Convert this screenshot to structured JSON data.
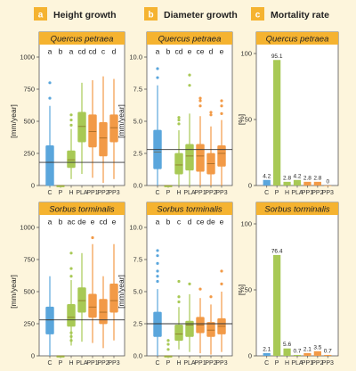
{
  "panels": [
    {
      "letter": "a",
      "title": "Height growth"
    },
    {
      "letter": "b",
      "title": "Diameter growth"
    },
    {
      "letter": "c",
      "title": "Mortality rate"
    }
  ],
  "species": [
    "Quercus petraea",
    "Sorbus torminalis"
  ],
  "ylabels": {
    "height": "[mm/year]",
    "diameter": "[mm/year]",
    "mortality": "[%]"
  },
  "colors": {
    "blue": "#5aa6dc",
    "green": "#a8c955",
    "orange": "#f29a47",
    "header": "#f5b330",
    "bg": "#fdf5dc",
    "plot_bg": "#ffffff"
  },
  "chart_data": [
    {
      "type": "box",
      "panel": "a",
      "species": "Quercus petraea",
      "categories": [
        "C",
        "P",
        "H",
        "PLA",
        "PP1",
        "PP2",
        "PP3"
      ],
      "letters": [
        "a",
        "b",
        "a",
        "cd",
        "cd",
        "c",
        "d"
      ],
      "ylim": [
        0,
        1000
      ],
      "yticks": [
        0,
        250,
        500,
        750,
        1000
      ],
      "reference_line": 180,
      "boxes": [
        {
          "min": 0,
          "q1": 0,
          "median": 180,
          "q3": 310,
          "max": 620,
          "outliers": [
            680,
            800
          ]
        },
        {
          "min": 0,
          "q1": 0,
          "median": 0,
          "q3": 0,
          "max": 0,
          "outliers": []
        },
        {
          "min": 50,
          "q1": 140,
          "median": 200,
          "q3": 270,
          "max": 440,
          "outliers": [
            470,
            510,
            550
          ]
        },
        {
          "min": 90,
          "q1": 340,
          "median": 460,
          "q3": 570,
          "max": 800,
          "outliers": []
        },
        {
          "min": 60,
          "q1": 300,
          "median": 420,
          "q3": 550,
          "max": 820,
          "outliers": []
        },
        {
          "min": 20,
          "q1": 230,
          "median": 370,
          "q3": 490,
          "max": 850,
          "outliers": []
        },
        {
          "min": 50,
          "q1": 340,
          "median": 450,
          "q3": 550,
          "max": 830,
          "outliers": []
        }
      ]
    },
    {
      "type": "box",
      "panel": "b",
      "species": "Quercus petraea",
      "categories": [
        "C",
        "P",
        "H",
        "PLA",
        "PP1",
        "PP2",
        "PP3"
      ],
      "letters": [
        "a",
        "b",
        "cd",
        "e",
        "ce",
        "d",
        "e"
      ],
      "ylim": [
        0,
        10
      ],
      "yticks": [
        0,
        2.5,
        5,
        7.5,
        10
      ],
      "reference_line": 2.8,
      "boxes": [
        {
          "min": 0,
          "q1": 1.3,
          "median": 2.6,
          "q3": 4.3,
          "max": 7.8,
          "outliers": [
            8.4,
            9.1
          ]
        },
        {
          "min": 0,
          "q1": 0,
          "median": 0,
          "q3": 0,
          "max": 0,
          "outliers": []
        },
        {
          "min": 0,
          "q1": 0.9,
          "median": 1.6,
          "q3": 2.5,
          "max": 4.3,
          "outliers": [
            4.8,
            5.1,
            5.3
          ]
        },
        {
          "min": 0,
          "q1": 1.2,
          "median": 2.3,
          "q3": 3.2,
          "max": 5.6,
          "outliers": [
            7.8,
            8.6
          ]
        },
        {
          "min": 0,
          "q1": 1.1,
          "median": 2.3,
          "q3": 3.2,
          "max": 5.4,
          "outliers": [
            6.2,
            6.6,
            6.8
          ]
        },
        {
          "min": 0,
          "q1": 0.9,
          "median": 1.7,
          "q3": 2.5,
          "max": 4.6,
          "outliers": [
            5.5,
            5.7
          ]
        },
        {
          "min": 0,
          "q1": 1.5,
          "median": 2.5,
          "q3": 3.1,
          "max": 5.1,
          "outliers": [
            5.6,
            6.2,
            6.6
          ]
        }
      ]
    },
    {
      "type": "bar",
      "panel": "c",
      "species": "Quercus petraea",
      "categories": [
        "C",
        "P",
        "H",
        "PLA",
        "PP1",
        "PP2",
        "PP3"
      ],
      "values": [
        4.2,
        95.1,
        2.8,
        4.2,
        2.8,
        2.8,
        0
      ],
      "labels": [
        "4.2",
        "95.1",
        "2.8",
        "4.2",
        "2.8",
        "2.8",
        "0"
      ],
      "ylim": [
        0,
        100
      ],
      "yticks": [
        0,
        50,
        100
      ]
    },
    {
      "type": "box",
      "panel": "a",
      "species": "Sorbus torminalis",
      "categories": [
        "C",
        "P",
        "H",
        "PLA",
        "PP1",
        "PP2",
        "PP3"
      ],
      "letters": [
        "a",
        "b",
        "ac",
        "de",
        "e",
        "cd",
        "e"
      ],
      "ylim": [
        0,
        1000
      ],
      "yticks": [
        0,
        250,
        500,
        750,
        1000
      ],
      "reference_line": 280,
      "boxes": [
        {
          "min": 0,
          "q1": 170,
          "median": 280,
          "q3": 380,
          "max": 620,
          "outliers": []
        },
        {
          "min": 0,
          "q1": 0,
          "median": 0,
          "q3": 0,
          "max": 0,
          "outliers": []
        },
        {
          "min": 80,
          "q1": 230,
          "median": 300,
          "q3": 400,
          "max": 590,
          "outliers": [
            120,
            150,
            180,
            620,
            680,
            800
          ]
        },
        {
          "min": 110,
          "q1": 340,
          "median": 430,
          "q3": 530,
          "max": 800,
          "outliers": []
        },
        {
          "min": 100,
          "q1": 300,
          "median": 380,
          "q3": 480,
          "max": 870,
          "outliers": [
            920
          ]
        },
        {
          "min": 60,
          "q1": 250,
          "median": 340,
          "q3": 440,
          "max": 620,
          "outliers": []
        },
        {
          "min": 120,
          "q1": 340,
          "median": 430,
          "q3": 560,
          "max": 870,
          "outliers": []
        }
      ]
    },
    {
      "type": "box",
      "panel": "b",
      "species": "Sorbus torminalis",
      "categories": [
        "C",
        "P",
        "H",
        "PLA",
        "PP1",
        "PP2",
        "PP3"
      ],
      "letters": [
        "a",
        "b",
        "c",
        "d",
        "ce",
        "de",
        "e"
      ],
      "ylim": [
        0,
        10
      ],
      "yticks": [
        0,
        2.5,
        5,
        7.5,
        10
      ],
      "reference_line": 2.5,
      "boxes": [
        {
          "min": 0,
          "q1": 1.5,
          "median": 2.5,
          "q3": 3.4,
          "max": 5.2,
          "outliers": [
            5.8,
            6.2,
            6.6,
            7.2,
            7.8,
            8.2
          ]
        },
        {
          "min": 0,
          "q1": 0,
          "median": 0,
          "q3": 0,
          "max": 0,
          "outliers": [
            0.5,
            0.9,
            1.2
          ]
        },
        {
          "min": 0.5,
          "q1": 1.2,
          "median": 1.7,
          "q3": 2.4,
          "max": 3.8,
          "outliers": [
            4.2,
            4.6,
            5.8
          ]
        },
        {
          "min": 0.3,
          "q1": 1.5,
          "median": 2.4,
          "q3": 2.7,
          "max": 4.8,
          "outliers": [
            5.6
          ]
        },
        {
          "min": 0.2,
          "q1": 1.8,
          "median": 2.4,
          "q3": 3,
          "max": 4.5,
          "outliers": [
            5.2
          ]
        },
        {
          "min": 0.1,
          "q1": 1.5,
          "median": 2,
          "q3": 2.6,
          "max": 4,
          "outliers": [
            4.6
          ]
        },
        {
          "min": 0.3,
          "q1": 1.7,
          "median": 2.3,
          "q3": 2.9,
          "max": 5,
          "outliers": [
            5.6,
            6.6
          ]
        }
      ]
    },
    {
      "type": "bar",
      "panel": "c",
      "species": "Sorbus torminalis",
      "categories": [
        "C",
        "P",
        "H",
        "PLA",
        "PP1",
        "PP2",
        "PP3"
      ],
      "values": [
        2.1,
        76.4,
        5.6,
        0.7,
        2.1,
        3.5,
        0.7
      ],
      "labels": [
        "2.1",
        "76.4",
        "5.6",
        "0.7",
        "2.1",
        "3.5",
        "0.7"
      ],
      "ylim": [
        0,
        100
      ],
      "yticks": [
        0,
        50,
        100
      ]
    }
  ]
}
